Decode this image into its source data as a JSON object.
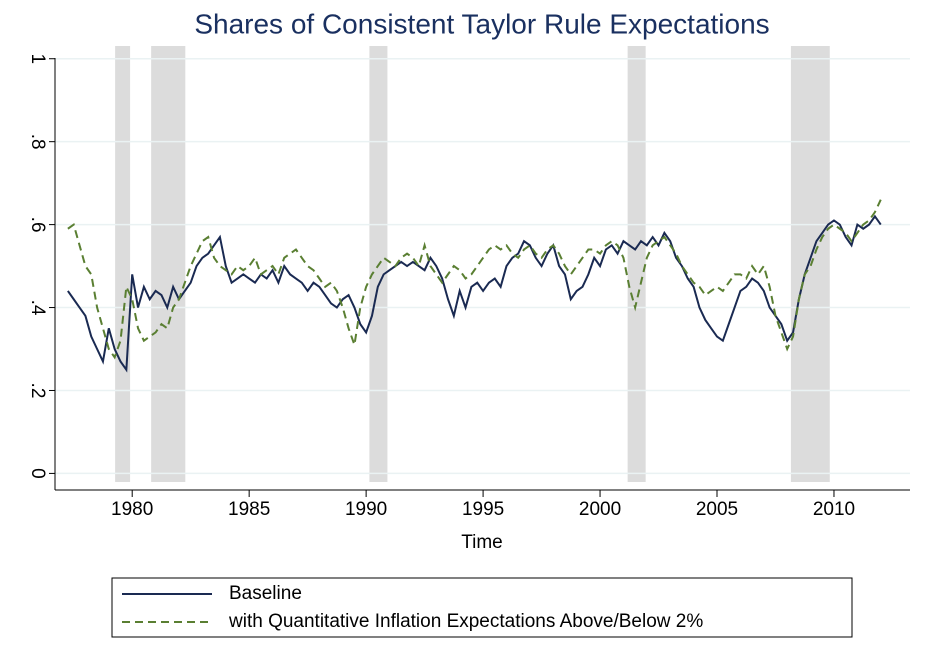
{
  "chart_data": {
    "type": "line",
    "title": "Shares of Consistent Taylor Rule Expectations",
    "xlabel": "Time",
    "xlim": [
      1976.7,
      2013.25
    ],
    "xticks": [
      1980,
      1985,
      1990,
      1995,
      2000,
      2005,
      2010
    ],
    "ylim": [
      -0.04,
      1.05
    ],
    "yticks": [
      0,
      {
        "value": 0.2,
        "label": ".2"
      },
      {
        "value": 0.4,
        "label": ".4"
      },
      {
        "value": 0.6,
        "label": ".6"
      },
      {
        "value": 0.8,
        "label": ".8"
      },
      1
    ],
    "grid": true,
    "legend": "bottom",
    "recessions": [
      [
        1979.27,
        1979.91
      ],
      [
        1980.81,
        1982.27
      ],
      [
        1990.14,
        1990.91
      ],
      [
        2001.18,
        2001.95
      ],
      [
        2008.16,
        2009.82
      ]
    ],
    "x": [
      1977.25,
      1977.5,
      1977.75,
      1978,
      1978.25,
      1978.5,
      1978.75,
      1979,
      1979.25,
      1979.5,
      1979.75,
      1980,
      1980.25,
      1980.5,
      1980.75,
      1981,
      1981.25,
      1981.5,
      1981.75,
      1982,
      1982.25,
      1982.5,
      1982.75,
      1983,
      1983.25,
      1983.5,
      1983.75,
      1984,
      1984.25,
      1984.5,
      1984.75,
      1985,
      1985.25,
      1985.5,
      1985.75,
      1986,
      1986.25,
      1986.5,
      1986.75,
      1987,
      1987.25,
      1987.5,
      1987.75,
      1988,
      1988.25,
      1988.5,
      1988.75,
      1989,
      1989.25,
      1989.5,
      1989.75,
      1990,
      1990.25,
      1990.5,
      1990.75,
      1991,
      1991.25,
      1991.5,
      1991.75,
      1992,
      1992.25,
      1992.5,
      1992.75,
      1993,
      1993.25,
      1993.5,
      1993.75,
      1994,
      1994.25,
      1994.5,
      1994.75,
      1995,
      1995.25,
      1995.5,
      1995.75,
      1996,
      1996.25,
      1996.5,
      1996.75,
      1997,
      1997.25,
      1997.5,
      1997.75,
      1998,
      1998.25,
      1998.5,
      1998.75,
      1999,
      1999.25,
      1999.5,
      1999.75,
      2000,
      2000.25,
      2000.5,
      2000.75,
      2001,
      2001.25,
      2001.5,
      2001.75,
      2002,
      2002.25,
      2002.5,
      2002.75,
      2003,
      2003.25,
      2003.5,
      2003.75,
      2004,
      2004.25,
      2004.5,
      2004.75,
      2005,
      2005.25,
      2005.5,
      2005.75,
      2006,
      2006.25,
      2006.5,
      2006.75,
      2007,
      2007.25,
      2007.5,
      2007.75,
      2008,
      2008.25,
      2008.5,
      2008.75,
      2009,
      2009.25,
      2009.5,
      2009.75,
      2010,
      2010.25,
      2010.5,
      2010.75,
      2011,
      2011.25,
      2011.5,
      2011.75,
      2012
    ],
    "series": [
      {
        "name": "Baseline",
        "color": "#1a2a52",
        "dash": false,
        "values": [
          0.44,
          0.42,
          0.4,
          0.38,
          0.33,
          0.3,
          0.27,
          0.35,
          0.3,
          0.27,
          0.25,
          0.48,
          0.4,
          0.45,
          0.42,
          0.44,
          0.43,
          0.4,
          0.45,
          0.42,
          0.44,
          0.46,
          0.5,
          0.52,
          0.53,
          0.55,
          0.57,
          0.5,
          0.46,
          0.47,
          0.48,
          0.47,
          0.46,
          0.48,
          0.47,
          0.49,
          0.46,
          0.5,
          0.48,
          0.47,
          0.46,
          0.44,
          0.46,
          0.45,
          0.43,
          0.41,
          0.4,
          0.42,
          0.43,
          0.4,
          0.36,
          0.34,
          0.38,
          0.45,
          0.48,
          0.49,
          0.5,
          0.51,
          0.5,
          0.51,
          0.5,
          0.49,
          0.52,
          0.5,
          0.47,
          0.42,
          0.38,
          0.44,
          0.4,
          0.45,
          0.46,
          0.44,
          0.46,
          0.47,
          0.45,
          0.5,
          0.52,
          0.53,
          0.56,
          0.55,
          0.52,
          0.5,
          0.53,
          0.55,
          0.5,
          0.48,
          0.42,
          0.44,
          0.45,
          0.48,
          0.52,
          0.5,
          0.54,
          0.55,
          0.53,
          0.56,
          0.55,
          0.54,
          0.56,
          0.55,
          0.57,
          0.55,
          0.58,
          0.56,
          0.52,
          0.5,
          0.47,
          0.45,
          0.4,
          0.37,
          0.35,
          0.33,
          0.32,
          0.36,
          0.4,
          0.44,
          0.45,
          0.47,
          0.46,
          0.44,
          0.4,
          0.38,
          0.36,
          0.32,
          0.34,
          0.42,
          0.48,
          0.52,
          0.56,
          0.58,
          0.6,
          0.61,
          0.6,
          0.57,
          0.55,
          0.6,
          0.59,
          0.6,
          0.62,
          0.6
        ]
      },
      {
        "name": "with Quantitative Inflation Expectations Above/Below 2%",
        "color": "#5a7f32",
        "dash": true,
        "values": [
          0.59,
          0.6,
          0.55,
          0.5,
          0.48,
          0.4,
          0.35,
          0.3,
          0.28,
          0.32,
          0.45,
          0.42,
          0.35,
          0.32,
          0.33,
          0.34,
          0.36,
          0.35,
          0.4,
          0.42,
          0.46,
          0.5,
          0.53,
          0.56,
          0.57,
          0.52,
          0.5,
          0.49,
          0.48,
          0.5,
          0.49,
          0.5,
          0.52,
          0.48,
          0.49,
          0.5,
          0.48,
          0.52,
          0.53,
          0.54,
          0.52,
          0.5,
          0.49,
          0.47,
          0.45,
          0.46,
          0.44,
          0.4,
          0.35,
          0.31,
          0.4,
          0.45,
          0.48,
          0.5,
          0.52,
          0.51,
          0.5,
          0.52,
          0.53,
          0.52,
          0.5,
          0.55,
          0.5,
          0.48,
          0.46,
          0.48,
          0.5,
          0.49,
          0.47,
          0.48,
          0.5,
          0.52,
          0.54,
          0.55,
          0.54,
          0.55,
          0.53,
          0.52,
          0.54,
          0.55,
          0.53,
          0.52,
          0.54,
          0.55,
          0.53,
          0.5,
          0.48,
          0.5,
          0.52,
          0.54,
          0.54,
          0.53,
          0.55,
          0.56,
          0.55,
          0.52,
          0.45,
          0.4,
          0.46,
          0.52,
          0.55,
          0.56,
          0.57,
          0.55,
          0.53,
          0.5,
          0.48,
          0.46,
          0.45,
          0.43,
          0.44,
          0.45,
          0.44,
          0.46,
          0.48,
          0.48,
          0.47,
          0.5,
          0.48,
          0.5,
          0.45,
          0.38,
          0.34,
          0.3,
          0.33,
          0.42,
          0.48,
          0.5,
          0.54,
          0.57,
          0.59,
          0.6,
          0.59,
          0.58,
          0.56,
          0.58,
          0.6,
          0.61,
          0.63,
          0.66
        ]
      }
    ]
  }
}
